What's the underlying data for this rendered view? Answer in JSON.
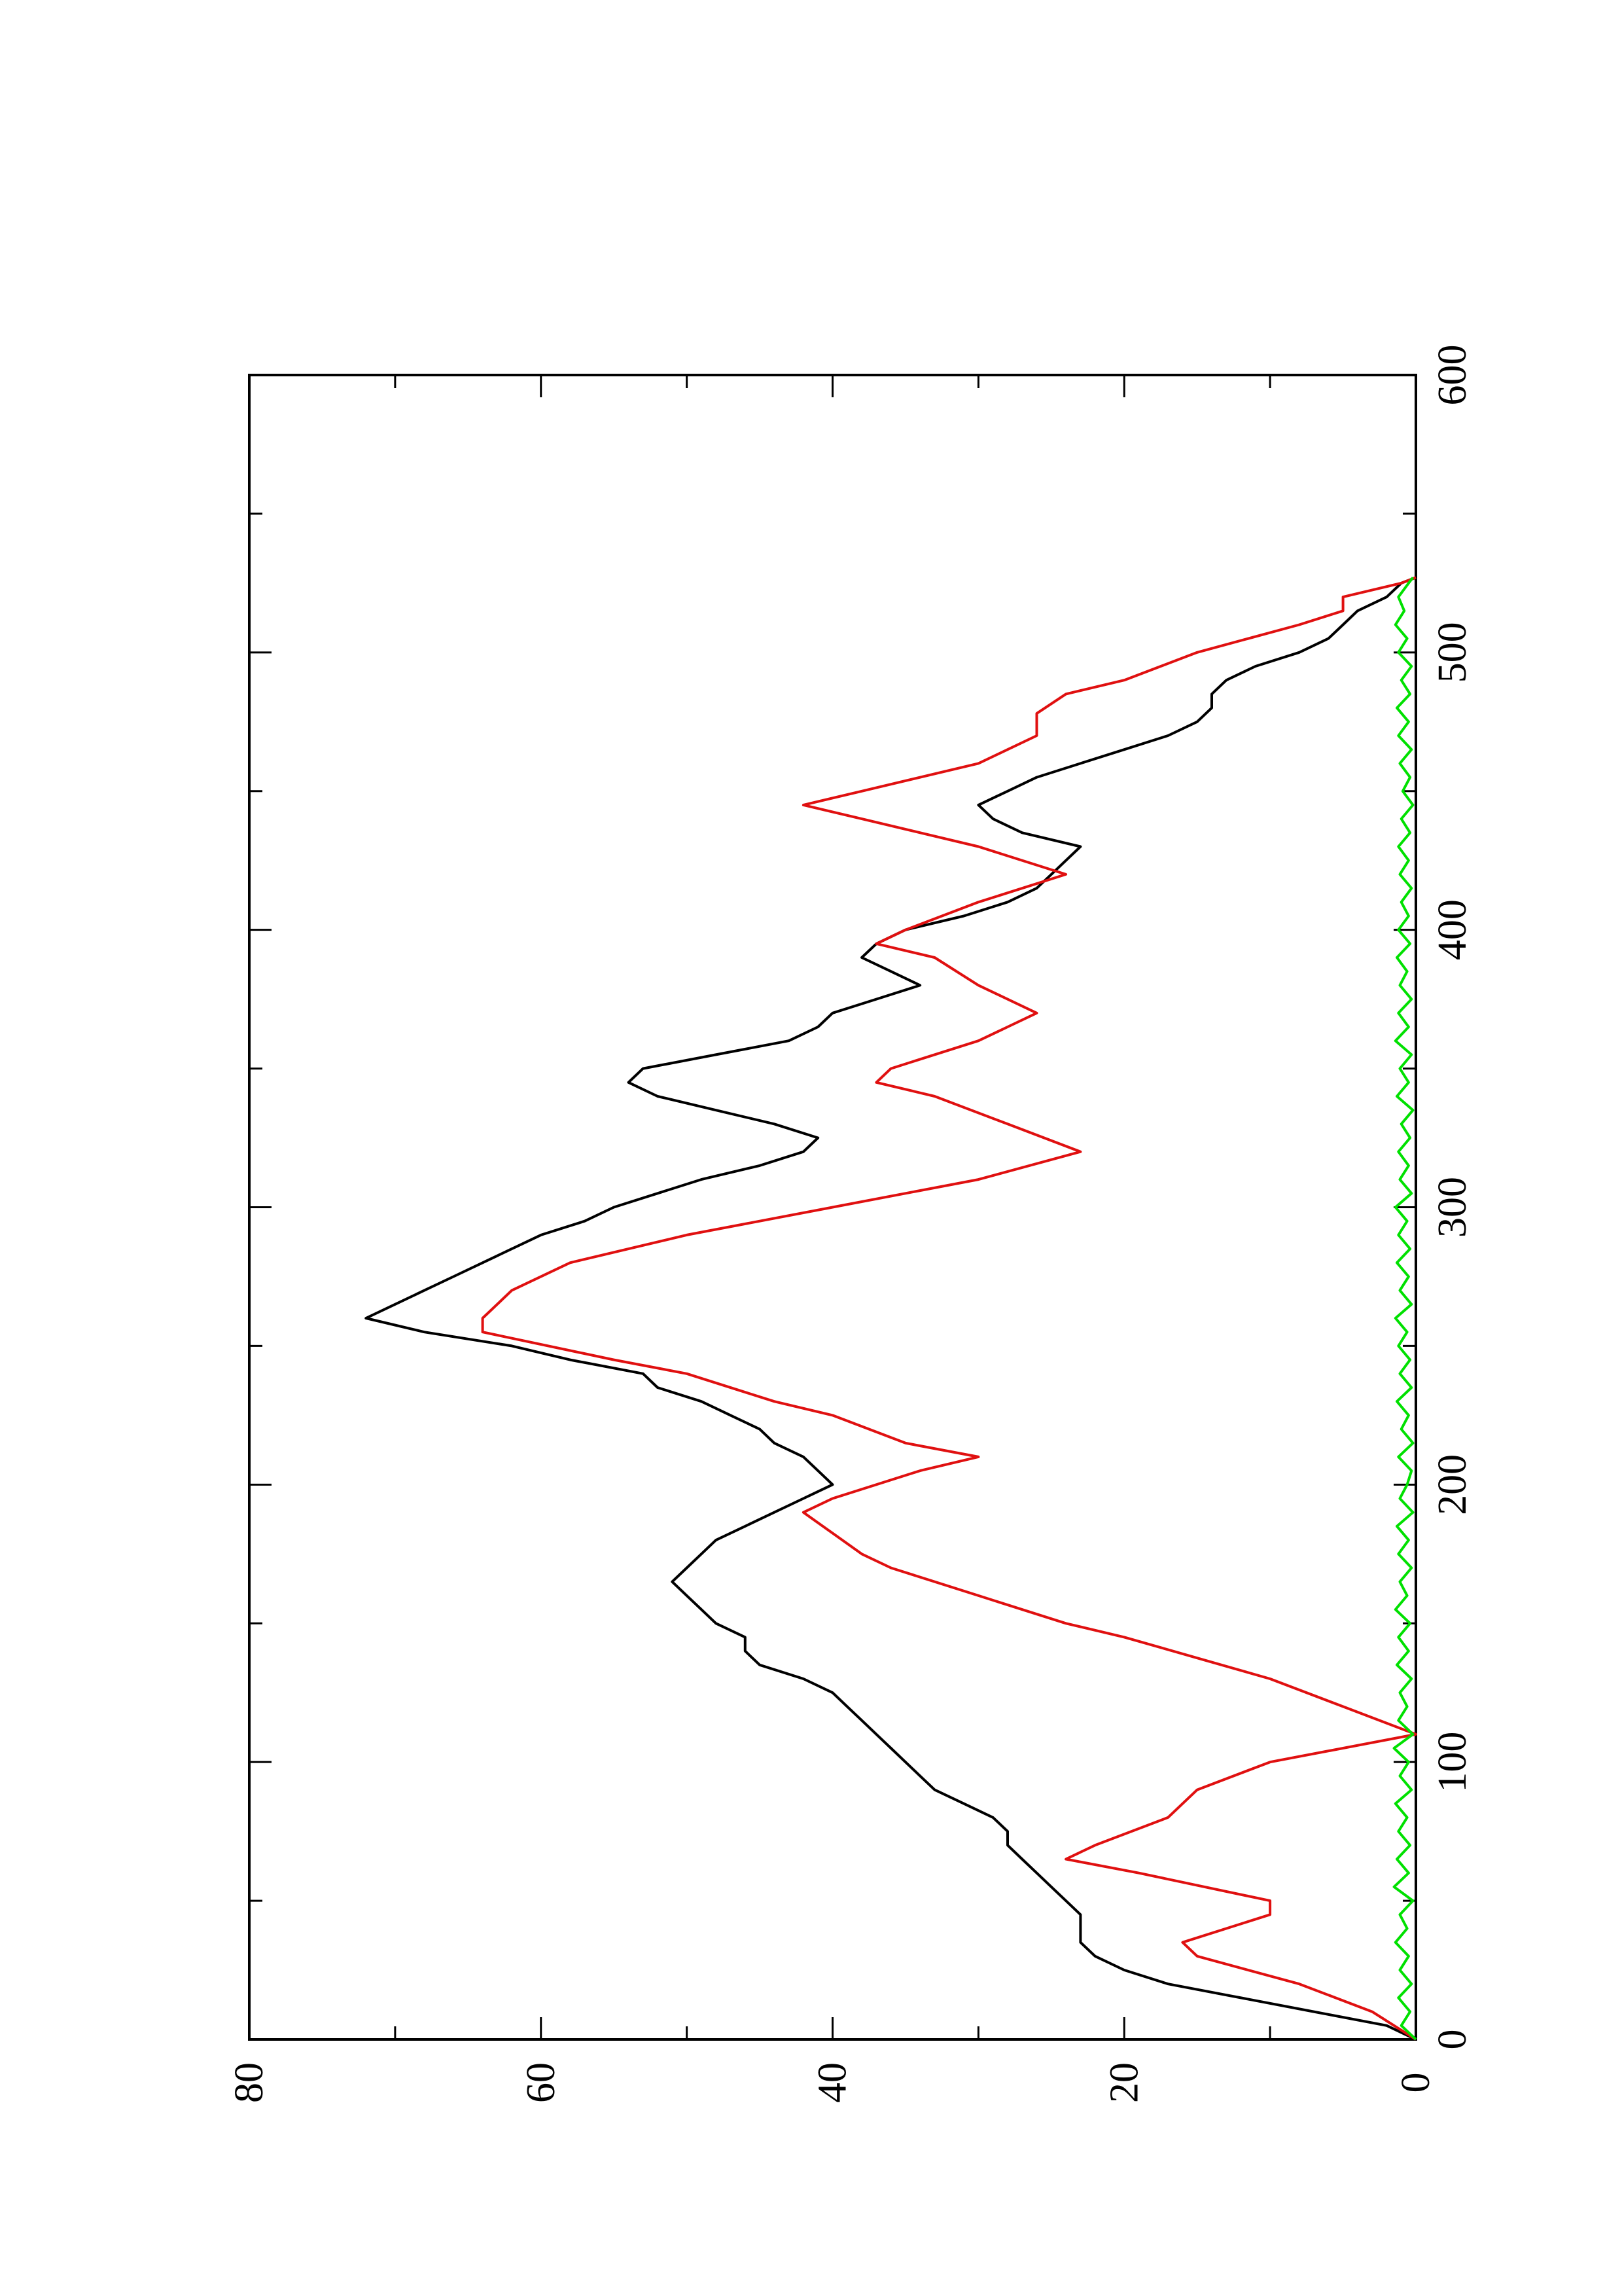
{
  "chart_data": {
    "type": "line",
    "orientation": "rotated 90 degrees counter-clockwise",
    "title": "",
    "xlabel": "",
    "ylabel": "",
    "xlim": [
      0,
      600
    ],
    "ylim": [
      0,
      80
    ],
    "x_ticks": [
      "0",
      "100",
      "200",
      "300",
      "400",
      "500",
      "600"
    ],
    "y_ticks": [
      "0",
      "20",
      "40",
      "60",
      "80"
    ],
    "grid": false,
    "legend": "none",
    "series": [
      {
        "color": "#000000",
        "points": [
          [
            0,
            0
          ],
          [
            5,
            2
          ],
          [
            10,
            7
          ],
          [
            15,
            12
          ],
          [
            20,
            17
          ],
          [
            25,
            20
          ],
          [
            30,
            22
          ],
          [
            35,
            23
          ],
          [
            40,
            23
          ],
          [
            45,
            23
          ],
          [
            50,
            24
          ],
          [
            55,
            25
          ],
          [
            60,
            26
          ],
          [
            65,
            27
          ],
          [
            70,
            28
          ],
          [
            75,
            28
          ],
          [
            80,
            29
          ],
          [
            85,
            31
          ],
          [
            90,
            33
          ],
          [
            95,
            34
          ],
          [
            100,
            35
          ],
          [
            105,
            36
          ],
          [
            110,
            37
          ],
          [
            115,
            38
          ],
          [
            120,
            39
          ],
          [
            125,
            40
          ],
          [
            130,
            42
          ],
          [
            135,
            45
          ],
          [
            140,
            46
          ],
          [
            145,
            46
          ],
          [
            150,
            48
          ],
          [
            155,
            49
          ],
          [
            160,
            50
          ],
          [
            165,
            51
          ],
          [
            170,
            50
          ],
          [
            175,
            49
          ],
          [
            180,
            48
          ],
          [
            185,
            46
          ],
          [
            190,
            44
          ],
          [
            195,
            42
          ],
          [
            200,
            40
          ],
          [
            205,
            41
          ],
          [
            210,
            42
          ],
          [
            215,
            44
          ],
          [
            220,
            45
          ],
          [
            225,
            47
          ],
          [
            230,
            49
          ],
          [
            235,
            52
          ],
          [
            240,
            53
          ],
          [
            245,
            58
          ],
          [
            250,
            62
          ],
          [
            255,
            68
          ],
          [
            260,
            72
          ],
          [
            265,
            70
          ],
          [
            270,
            68
          ],
          [
            275,
            66
          ],
          [
            280,
            64
          ],
          [
            285,
            62
          ],
          [
            290,
            60
          ],
          [
            295,
            57
          ],
          [
            300,
            55
          ],
          [
            305,
            52
          ],
          [
            310,
            49
          ],
          [
            315,
            45
          ],
          [
            320,
            42
          ],
          [
            325,
            41
          ],
          [
            330,
            44
          ],
          [
            335,
            48
          ],
          [
            340,
            52
          ],
          [
            345,
            54
          ],
          [
            350,
            53
          ],
          [
            355,
            48
          ],
          [
            360,
            43
          ],
          [
            365,
            41
          ],
          [
            370,
            40
          ],
          [
            375,
            37
          ],
          [
            380,
            34
          ],
          [
            385,
            36
          ],
          [
            390,
            38
          ],
          [
            395,
            37
          ],
          [
            400,
            35
          ],
          [
            405,
            31
          ],
          [
            410,
            28
          ],
          [
            415,
            26
          ],
          [
            420,
            25
          ],
          [
            425,
            24
          ],
          [
            430,
            23
          ],
          [
            435,
            27
          ],
          [
            440,
            29
          ],
          [
            445,
            30
          ],
          [
            450,
            28
          ],
          [
            455,
            26
          ],
          [
            460,
            23
          ],
          [
            465,
            20
          ],
          [
            470,
            17
          ],
          [
            475,
            15
          ],
          [
            480,
            14
          ],
          [
            485,
            14
          ],
          [
            490,
            13
          ],
          [
            495,
            11
          ],
          [
            500,
            8
          ],
          [
            505,
            6
          ],
          [
            510,
            5
          ],
          [
            515,
            4
          ],
          [
            520,
            2
          ],
          [
            525,
            1
          ],
          [
            527,
            0
          ]
        ]
      },
      {
        "color": "#e01010",
        "points": [
          [
            0,
            0
          ],
          [
            10,
            3
          ],
          [
            20,
            8
          ],
          [
            30,
            15
          ],
          [
            35,
            16
          ],
          [
            45,
            10
          ],
          [
            50,
            10
          ],
          [
            60,
            19
          ],
          [
            65,
            24
          ],
          [
            70,
            22
          ],
          [
            80,
            17
          ],
          [
            90,
            15
          ],
          [
            100,
            10
          ],
          [
            110,
            0
          ],
          [
            120,
            5
          ],
          [
            130,
            10
          ],
          [
            145,
            20
          ],
          [
            150,
            24
          ],
          [
            160,
            30
          ],
          [
            170,
            36
          ],
          [
            175,
            38
          ],
          [
            190,
            42
          ],
          [
            195,
            40
          ],
          [
            205,
            34
          ],
          [
            210,
            30
          ],
          [
            215,
            35
          ],
          [
            225,
            40
          ],
          [
            230,
            44
          ],
          [
            240,
            50
          ],
          [
            245,
            55
          ],
          [
            255,
            64
          ],
          [
            260,
            64
          ],
          [
            270,
            62
          ],
          [
            280,
            58
          ],
          [
            290,
            50
          ],
          [
            300,
            40
          ],
          [
            310,
            30
          ],
          [
            320,
            23
          ],
          [
            330,
            28
          ],
          [
            340,
            33
          ],
          [
            345,
            37
          ],
          [
            350,
            36
          ],
          [
            360,
            30
          ],
          [
            365,
            28
          ],
          [
            370,
            26
          ],
          [
            380,
            30
          ],
          [
            390,
            33
          ],
          [
            395,
            37
          ],
          [
            400,
            35
          ],
          [
            410,
            30
          ],
          [
            420,
            24
          ],
          [
            430,
            30
          ],
          [
            440,
            38
          ],
          [
            445,
            42
          ],
          [
            450,
            38
          ],
          [
            460,
            30
          ],
          [
            470,
            26
          ],
          [
            478,
            26
          ],
          [
            485,
            24
          ],
          [
            490,
            20
          ],
          [
            500,
            15
          ],
          [
            510,
            8
          ],
          [
            515,
            5
          ],
          [
            520,
            5
          ],
          [
            525,
            1
          ],
          [
            527,
            0
          ]
        ]
      },
      {
        "color": "#00e000",
        "points": [
          [
            0,
            0
          ],
          [
            5,
            1
          ],
          [
            10,
            0.4
          ],
          [
            15,
            1.2
          ],
          [
            20,
            0.3
          ],
          [
            25,
            1.1
          ],
          [
            30,
            0.5
          ],
          [
            35,
            1.4
          ],
          [
            40,
            0.6
          ],
          [
            45,
            1.1
          ],
          [
            50,
            0.2
          ],
          [
            55,
            1.5
          ],
          [
            60,
            0.5
          ],
          [
            65,
            1.3
          ],
          [
            70,
            0.4
          ],
          [
            75,
            1.2
          ],
          [
            80,
            0.6
          ],
          [
            85,
            1.4
          ],
          [
            90,
            0.3
          ],
          [
            95,
            1.1
          ],
          [
            100,
            0.5
          ],
          [
            105,
            1.5
          ],
          [
            110,
            0.2
          ],
          [
            115,
            1.2
          ],
          [
            120,
            0.6
          ],
          [
            125,
            1.1
          ],
          [
            130,
            0.3
          ],
          [
            135,
            1.3
          ],
          [
            140,
            0.5
          ],
          [
            145,
            1.2
          ],
          [
            150,
            0.4
          ],
          [
            155,
            1.4
          ],
          [
            160,
            0.6
          ],
          [
            165,
            1.1
          ],
          [
            170,
            0.3
          ],
          [
            175,
            1.2
          ],
          [
            180,
            0.5
          ],
          [
            185,
            1.3
          ],
          [
            190,
            0.2
          ],
          [
            195,
            1.1
          ],
          [
            200,
            0.6
          ],
          [
            205,
            0.3
          ],
          [
            210,
            1.2
          ],
          [
            215,
            0.2
          ],
          [
            220,
            1.0
          ],
          [
            225,
            0.5
          ],
          [
            230,
            1.3
          ],
          [
            235,
            0.3
          ],
          [
            240,
            1.1
          ],
          [
            245,
            0.4
          ],
          [
            250,
            1.2
          ],
          [
            255,
            0.6
          ],
          [
            260,
            1.4
          ],
          [
            265,
            0.3
          ],
          [
            270,
            1.1
          ],
          [
            275,
            0.5
          ],
          [
            280,
            1.3
          ],
          [
            285,
            0.4
          ],
          [
            290,
            1.2
          ],
          [
            295,
            0.6
          ],
          [
            300,
            1.4
          ],
          [
            305,
            0.3
          ],
          [
            310,
            1.1
          ],
          [
            315,
            0.5
          ],
          [
            320,
            1.2
          ],
          [
            325,
            0.4
          ],
          [
            330,
            1.0
          ],
          [
            335,
            0.2
          ],
          [
            340,
            1.3
          ],
          [
            345,
            0.5
          ],
          [
            350,
            1.1
          ],
          [
            355,
            0.3
          ],
          [
            360,
            1.4
          ],
          [
            365,
            0.5
          ],
          [
            370,
            1.2
          ],
          [
            375,
            0.3
          ],
          [
            380,
            1.1
          ],
          [
            385,
            0.6
          ],
          [
            390,
            1.3
          ],
          [
            395,
            0.4
          ],
          [
            400,
            1.2
          ],
          [
            405,
            0.5
          ],
          [
            410,
            1.0
          ],
          [
            415,
            0.3
          ],
          [
            420,
            1.1
          ],
          [
            425,
            0.5
          ],
          [
            430,
            1.2
          ],
          [
            435,
            0.4
          ],
          [
            440,
            1.0
          ],
          [
            445,
            0.2
          ],
          [
            450,
            0.9
          ],
          [
            455,
            0.4
          ],
          [
            460,
            1.1
          ],
          [
            465,
            0.3
          ],
          [
            470,
            1.2
          ],
          [
            475,
            0.5
          ],
          [
            480,
            1.3
          ],
          [
            485,
            0.4
          ],
          [
            490,
            1.0
          ],
          [
            495,
            0.3
          ],
          [
            500,
            1.2
          ],
          [
            505,
            0.6
          ],
          [
            510,
            1.4
          ],
          [
            515,
            0.8
          ],
          [
            520,
            1.2
          ],
          [
            525,
            0.5
          ],
          [
            527,
            0.2
          ]
        ]
      }
    ]
  }
}
